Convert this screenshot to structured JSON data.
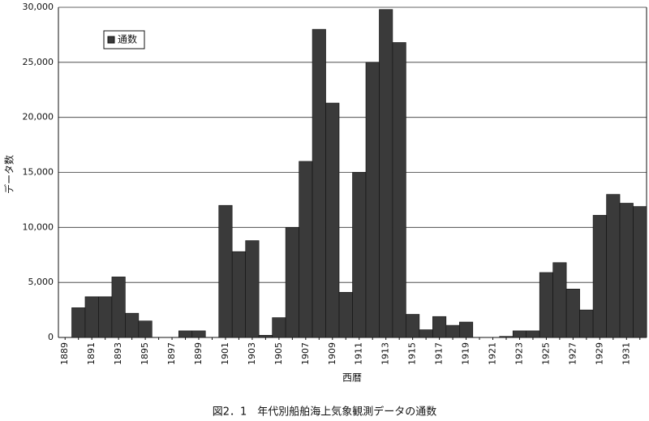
{
  "chart_data": {
    "type": "bar",
    "title": "図2．1　年代別船舶海上気象観測データの通数",
    "x_label": "西暦",
    "y_label": "データ数",
    "categories": [
      "1889",
      null,
      "1891",
      null,
      "1893",
      null,
      "1895",
      null,
      "1897",
      null,
      "1899",
      null,
      "1901",
      null,
      "1903",
      null,
      "1905",
      null,
      "1907",
      null,
      "1909",
      null,
      "1911",
      null,
      "1913",
      null,
      "1915",
      null,
      "1917",
      null,
      "1919",
      null,
      "1921",
      null,
      "1923",
      null,
      "1925",
      null,
      "1927",
      null,
      "1929",
      null,
      "1931",
      null
    ],
    "series": [
      {
        "name": "通数",
        "color": "#3a3a3a",
        "values": [
          0,
          2700,
          3700,
          3700,
          5500,
          2200,
          1500,
          0,
          0,
          600,
          600,
          0,
          12000,
          7800,
          8800,
          200,
          1800,
          10000,
          16000,
          28000,
          21300,
          4100,
          15000,
          25000,
          29800,
          26800,
          2100,
          700,
          1900,
          1100,
          1400,
          0,
          0,
          100,
          600,
          600,
          5900,
          6800,
          4400,
          2500,
          11100,
          13000,
          12200,
          11900
        ]
      }
    ],
    "ylim": [
      0,
      30000
    ],
    "yticks": [
      0,
      {
        "value": 5000,
        "label": "5,000"
      },
      {
        "value": 10000,
        "label": "10,000"
      },
      {
        "value": 15000,
        "label": "15,000"
      },
      {
        "value": 20000,
        "label": "20,000"
      },
      {
        "value": 25000,
        "label": "25,000"
      },
      {
        "value": 30000,
        "label": "30,000"
      }
    ],
    "grid": true,
    "legend": "upper left"
  }
}
